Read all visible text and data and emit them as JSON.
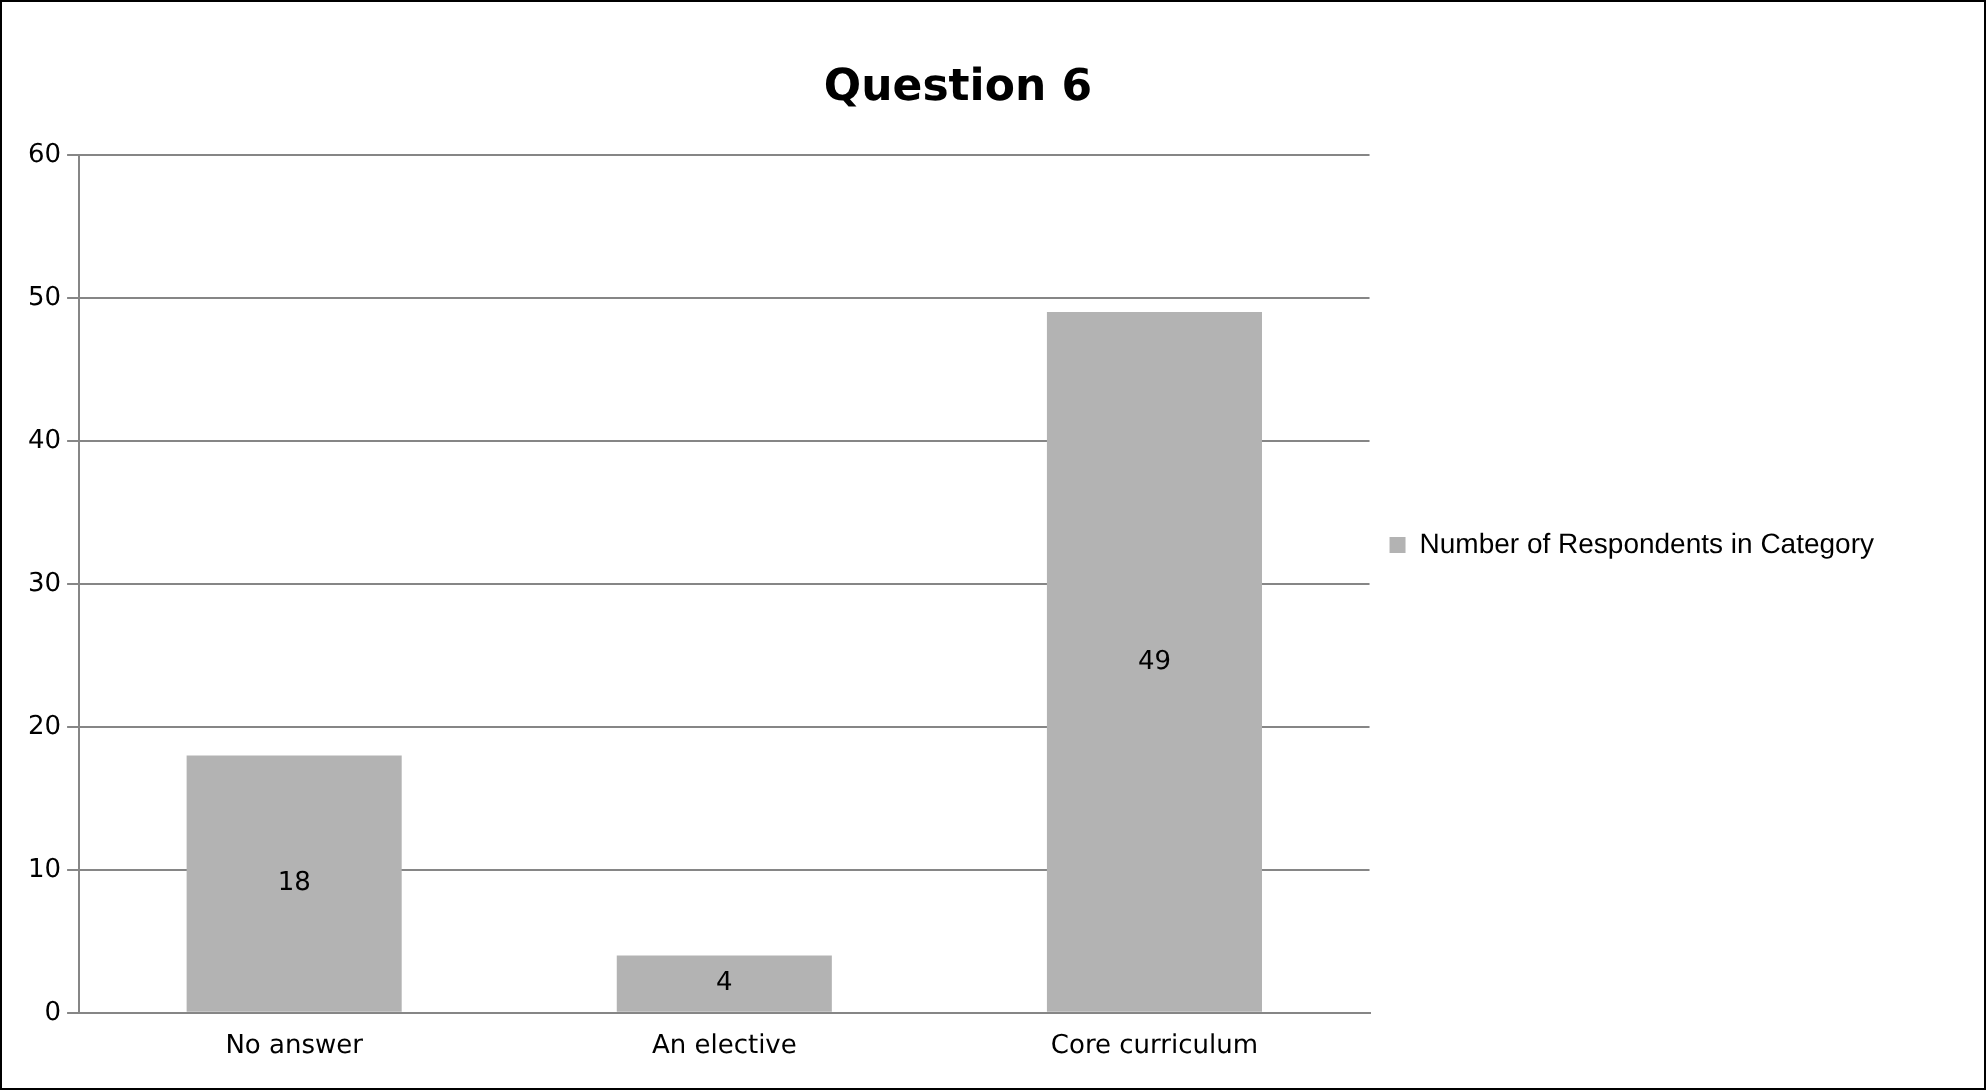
{
  "chart_data": {
    "type": "bar",
    "title": "Question 6",
    "categories": [
      "No answer",
      "An elective",
      "Core curriculum"
    ],
    "series": [
      {
        "name": "Number of Respondents in Category",
        "color": "#b3b3b3",
        "values": [
          18,
          4,
          49
        ]
      }
    ],
    "ylim": [
      0,
      60
    ],
    "yticks": [
      0,
      10,
      20,
      30,
      40,
      50,
      60
    ],
    "grid": "y",
    "legend": "right",
    "data_labels": true
  }
}
